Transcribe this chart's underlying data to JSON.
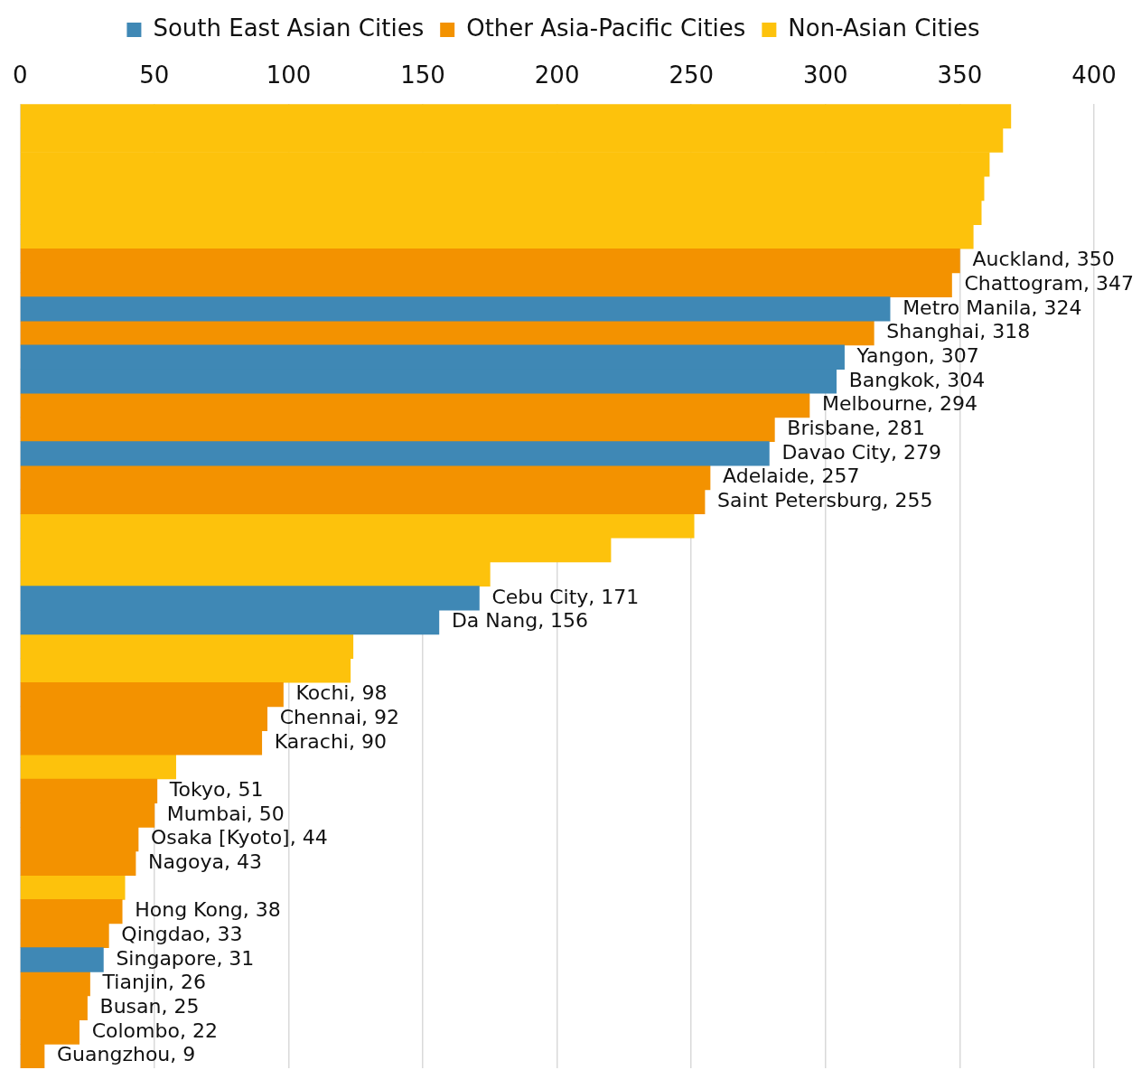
{
  "chart_data": {
    "type": "bar",
    "orientation": "horizontal",
    "stacked": true,
    "legend": "top",
    "grid": "x",
    "tick_labels": "x",
    "categories": [
      null,
      null,
      null,
      null,
      null,
      null,
      null,
      null,
      null,
      null,
      null,
      null,
      null,
      null,
      null,
      null,
      null,
      null,
      null,
      null,
      null,
      null,
      null,
      null,
      null,
      null,
      null,
      null,
      null,
      null,
      null,
      null,
      null,
      null,
      null,
      null,
      null,
      null,
      null,
      null
    ],
    "xlim": [
      0,
      400
    ],
    "xticks": [
      0,
      50,
      100,
      150,
      200,
      250,
      300,
      350,
      400
    ],
    "series": [
      {
        "name": "South East Asian Cities",
        "color": "#3f88b5",
        "values": [
          null,
          null,
          null,
          null,
          null,
          null,
          null,
          null,
          324,
          null,
          307,
          304,
          null,
          null,
          279,
          null,
          null,
          null,
          null,
          null,
          171,
          156,
          null,
          null,
          null,
          null,
          null,
          null,
          null,
          null,
          null,
          null,
          null,
          null,
          null,
          31,
          null,
          null,
          null,
          null
        ],
        "value_labels": [
          null,
          null,
          null,
          null,
          null,
          null,
          null,
          null,
          "Metro Manila, 324",
          null,
          "Yangon, 307",
          "Bangkok, 304",
          null,
          null,
          "Davao City, 279",
          null,
          null,
          null,
          null,
          null,
          "Cebu City, 171",
          "Da Nang, 156",
          null,
          null,
          null,
          null,
          null,
          null,
          null,
          null,
          null,
          null,
          null,
          null,
          null,
          "Singapore, 31",
          null,
          null,
          null,
          null
        ]
      },
      {
        "name": "Other Asia-Pacific Cities",
        "color": "#f39200",
        "values": [
          null,
          null,
          null,
          null,
          null,
          null,
          350,
          347,
          null,
          318,
          null,
          null,
          294,
          281,
          null,
          257,
          255,
          null,
          null,
          null,
          null,
          null,
          null,
          null,
          98,
          92,
          90,
          null,
          51,
          50,
          44,
          43,
          null,
          38,
          33,
          null,
          26,
          25,
          22,
          9
        ],
        "value_labels": [
          null,
          null,
          null,
          null,
          null,
          null,
          "Auckland, 350",
          "Chattogram, 347",
          null,
          "Shanghai, 318",
          null,
          null,
          "Melbourne, 294",
          "Brisbane, 281",
          null,
          "Adelaide, 257",
          "Saint Petersburg, 255",
          null,
          null,
          null,
          null,
          null,
          null,
          null,
          "Kochi, 98",
          "Chennai, 92",
          "Karachi, 90",
          null,
          "Tokyo, 51",
          "Mumbai, 50",
          "Osaka [Kyoto], 44",
          "Nagoya, 43",
          null,
          "Hong Kong, 38",
          "Qingdao, 33",
          null,
          "Tianjin, 26",
          "Busan, 25",
          "Colombo, 22",
          "Guangzhou, 9"
        ]
      },
      {
        "name": "Non-Asian Cities",
        "color": "#fdc20c",
        "values": [
          369,
          366,
          361,
          359,
          358,
          355,
          null,
          null,
          null,
          null,
          null,
          null,
          null,
          null,
          null,
          null,
          null,
          251,
          220,
          175,
          null,
          null,
          124,
          123,
          null,
          null,
          null,
          58,
          null,
          null,
          null,
          null,
          39,
          null,
          null,
          null,
          null,
          null,
          null,
          null
        ]
      }
    ]
  }
}
